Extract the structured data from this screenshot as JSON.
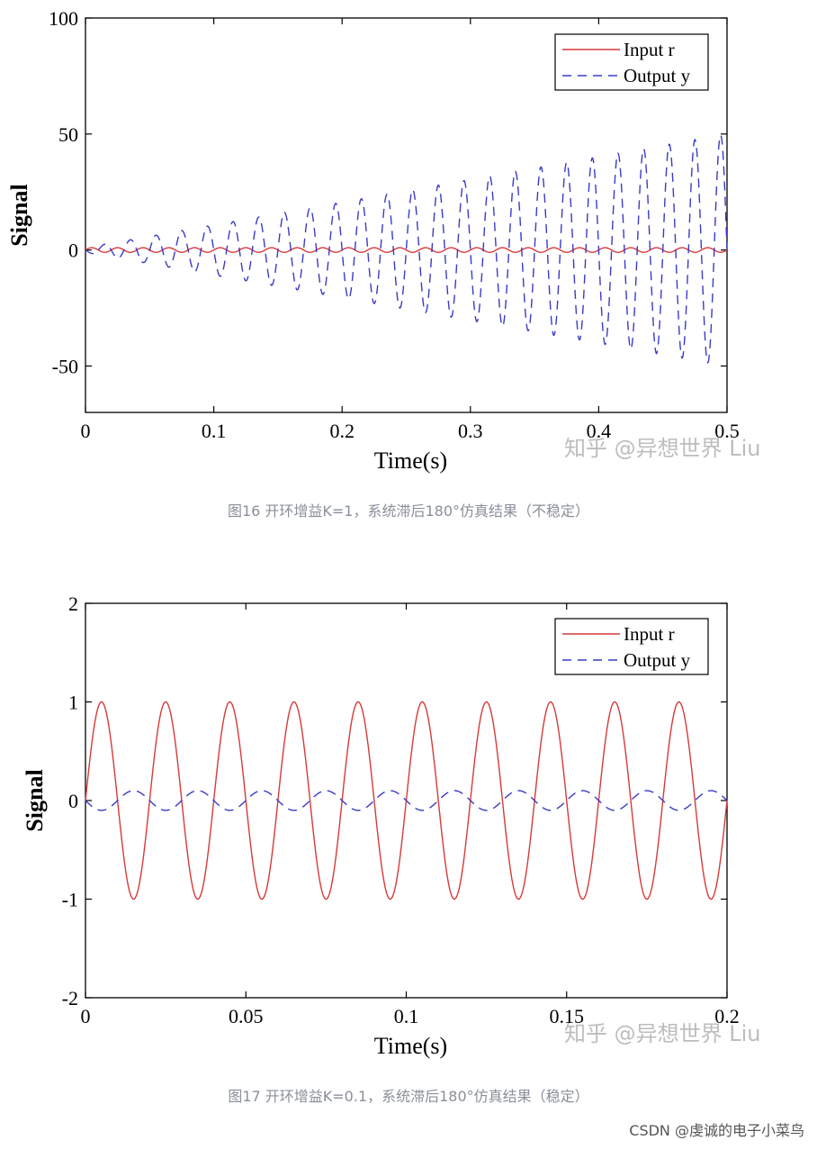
{
  "chart_data": [
    {
      "type": "line",
      "xlabel": "Time(s)",
      "ylabel": "Signal",
      "xlim": [
        0,
        0.5
      ],
      "ylim": [
        -70,
        100
      ],
      "xticks": [
        "0",
        "0.1",
        "0.2",
        "0.3",
        "0.4",
        "0.5"
      ],
      "yticks": [
        "-50",
        "0",
        "50",
        "100"
      ],
      "legend_position": "top-right",
      "watermark": "知乎 @异想世界 Liu",
      "series": [
        {
          "name": "Input r",
          "style": "solid",
          "color": "#d63a3a",
          "amplitude": 1,
          "frequency_hz": 50
        },
        {
          "name": "Output y",
          "style": "dashed",
          "color": "#3a3ac8",
          "amplitude_start": 1,
          "amplitude_end": 50,
          "frequency_hz": 50,
          "phase_lag_deg": 180
        }
      ]
    },
    {
      "type": "line",
      "xlabel": "Time(s)",
      "ylabel": "Signal",
      "xlim": [
        0,
        0.2
      ],
      "ylim": [
        -2,
        2
      ],
      "xticks": [
        "0",
        "0.05",
        "0.1",
        "0.15",
        "0.2"
      ],
      "yticks": [
        "-2",
        "-1",
        "0",
        "1",
        "2"
      ],
      "legend_position": "top-right",
      "watermark": "知乎 @异想世界 Liu",
      "series": [
        {
          "name": "Input r",
          "style": "solid",
          "color": "#d63a3a",
          "amplitude": 1,
          "frequency_hz": 50
        },
        {
          "name": "Output y",
          "style": "dashed",
          "color": "#3a3ac8",
          "amplitude": 0.1,
          "frequency_hz": 50,
          "phase_lag_deg": 180
        }
      ]
    }
  ],
  "captions": [
    "图16 开环增益K=1，系统滞后180°仿真结果（不稳定）",
    "图17 开环增益K=0.1，系统滞后180°仿真结果（稳定）"
  ],
  "footer": "CSDN @虔诚的电子小菜鸟"
}
